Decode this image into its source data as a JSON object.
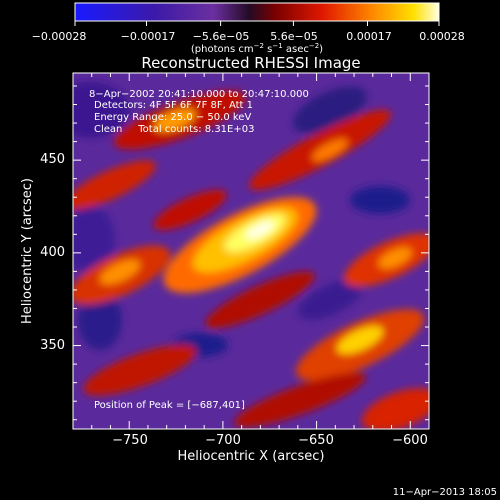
{
  "chart_data": {
    "type": "heatmap",
    "title": "Reconstructed RHESSI Image",
    "xlabel": "Heliocentric X (arcsec)",
    "ylabel": "Heliocentric Y (arcsec)",
    "xlim": [
      -780,
      -590
    ],
    "ylim": [
      305,
      497
    ],
    "xticks": [
      -750,
      -700,
      -650,
      -600
    ],
    "xtick_labels": [
      "−750",
      "−700",
      "−650",
      "−600"
    ],
    "yticks": [
      350,
      400,
      450
    ],
    "ytick_labels": [
      "350",
      "400",
      "450"
    ],
    "colorbar": {
      "min": -0.00028,
      "max": 0.00028,
      "ticks": [
        -0.00028,
        -0.00017,
        -5.6e-05,
        5.6e-05,
        0.00017,
        0.00028
      ],
      "tick_labels": [
        "−0.00028",
        "−0.00017",
        "−5.6e−05",
        "5.6e−05",
        "0.00017",
        "0.00028"
      ],
      "unit_label": "(photons cm",
      "unit_sup1": "−2",
      "unit_mid": " s",
      "unit_sup2": "−1",
      "unit_end": " asec",
      "unit_sup3": "−2",
      "unit_close": ")"
    },
    "info_lines": [
      " 8−Apr−2002 20:41:10.000 to 20:47:10.000",
      "Detectors: 4F 5F 6F 7F 8F, Att 1",
      "Energy Range: 25.0 − 50.0 keV",
      "Clean     Total counts: 8.31E+03"
    ],
    "peak_label": "Position of Peak = [−687,401]",
    "peak": {
      "x": -687,
      "y": 401
    },
    "colormap": "rainbow-like (blue, purple, red, orange, yellow, white)"
  },
  "footer_date": "11−Apr−2013 18:05"
}
